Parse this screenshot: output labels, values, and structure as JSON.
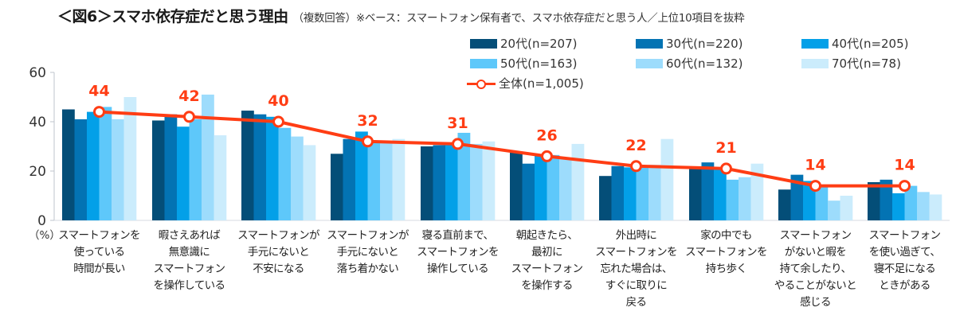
{
  "title": {
    "main": "＜図6＞スマホ依存症だと思う理由",
    "sub": "（複数回答）※ベース：スマートフォン保有者で、スマホ依存症だと思う人／上位10項目を抜粋"
  },
  "y_unit_label": "（%）",
  "legend": [
    {
      "label": "20代(n=207)",
      "color": "#044e78",
      "type": "bar"
    },
    {
      "label": "30代(n=220)",
      "color": "#0373b3",
      "type": "bar"
    },
    {
      "label": "40代(n=205)",
      "color": "#03a0e8",
      "type": "bar"
    },
    {
      "label": "50代(n=163)",
      "color": "#5ec8fa",
      "type": "bar"
    },
    {
      "label": "60代(n=132)",
      "color": "#9ddcfc",
      "type": "bar"
    },
    {
      "label": "70代(n=78)",
      "color": "#cbecfc",
      "type": "bar"
    },
    {
      "label": "全体(n=1,005)",
      "color": "#ff3d14",
      "type": "line"
    }
  ],
  "chart_data": {
    "type": "bar",
    "title": "＜図6＞スマホ依存症だと思う理由",
    "subtitle": "（複数回答）※ベース：スマートフォン保有者で、スマホ依存症だと思う人／上位10項目を抜粋",
    "xlabel": "",
    "ylabel": "（%）",
    "ylim": [
      0,
      60
    ],
    "yticks": [
      0,
      20,
      40,
      60
    ],
    "grid": false,
    "legend_position": "top-right",
    "categories": [
      "スマートフォンを\n使っている\n時間が長い",
      "暇さえあれば\n無意識に\nスマートフォン\nを操作している",
      "スマートフォンが\n手元にないと\n不安になる",
      "スマートフォンが\n手元にないと\n落ち着かない",
      "寝る直前まで、\nスマートフォンを\n操作している",
      "朝起きたら、\n最初に\nスマートフォン\nを操作する",
      "外出時に\nスマートフォンを\n忘れた場合は、\nすぐに取りに\n戻る",
      "家の中でも\nスマートフォンを\n持ち歩く",
      "スマートフォン\nがないと暇を\n持て余したり、\nやることがないと\n感じる",
      "スマートフォン\nを使い過ぎて、\n寝不足になる\nときがある"
    ],
    "series": [
      {
        "name": "20代(n=207)",
        "type": "bar",
        "values": [
          45,
          40.5,
          44.5,
          27,
          30,
          27.5,
          18,
          21.5,
          12.5,
          15.5
        ]
      },
      {
        "name": "30代(n=220)",
        "type": "bar",
        "values": [
          41,
          43,
          43,
          33,
          30.5,
          23,
          22,
          23.5,
          18.5,
          16.5
        ]
      },
      {
        "name": "40代(n=205)",
        "type": "bar",
        "values": [
          44,
          38,
          42,
          36,
          30.5,
          26.5,
          21.5,
          20.5,
          16,
          11
        ]
      },
      {
        "name": "50代(n=163)",
        "type": "bar",
        "values": [
          46,
          41,
          37.5,
          32,
          35.5,
          26.5,
          22,
          16.5,
          14,
          14
        ]
      },
      {
        "name": "60代(n=132)",
        "type": "bar",
        "values": [
          41,
          51,
          34,
          32,
          31,
          25.5,
          22.5,
          17.5,
          8,
          11.5
        ]
      },
      {
        "name": "70代(n=78)",
        "type": "bar",
        "values": [
          50,
          34.5,
          30.5,
          33,
          32,
          31,
          33,
          23,
          10,
          10.5
        ]
      },
      {
        "name": "全体(n=1,005)",
        "type": "line",
        "values": [
          44,
          42,
          40,
          32,
          31,
          26,
          22,
          21,
          14,
          14
        ],
        "data_labels": [
          "44",
          "42",
          "40",
          "32",
          "31",
          "26",
          "22",
          "21",
          "14",
          "14"
        ]
      }
    ]
  }
}
